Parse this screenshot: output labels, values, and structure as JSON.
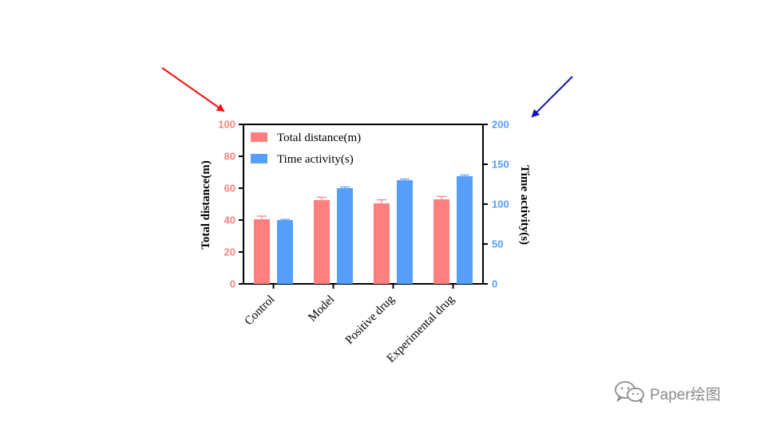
{
  "colors": {
    "distance": "#ff7f7f",
    "activity": "#569ff8",
    "left_axis_text": "#ff7f7f",
    "right_axis_text": "#569ff8",
    "red_arrow": "#ee1111",
    "blue_arrow": "#1111cc",
    "watermark": "#8a8a8a"
  },
  "watermark": {
    "icon": "wechat-icon",
    "text": "Paper绘图"
  },
  "chart_data": {
    "type": "bar",
    "categories": [
      "Control",
      "Model",
      "Positive drug",
      "Experimental drug"
    ],
    "series": [
      {
        "name": "Total distance(m)",
        "axis": "left",
        "values": [
          40.5,
          52.5,
          50.5,
          53
        ],
        "errors": [
          2,
          1.8,
          2.2,
          1.8
        ]
      },
      {
        "name": "Time activity(s)",
        "axis": "right",
        "values": [
          80,
          120,
          130,
          135
        ],
        "errors": [
          1,
          1.5,
          1.5,
          1.5
        ]
      }
    ],
    "left_axis": {
      "label": "Total distance(m)",
      "range": [
        0,
        100
      ],
      "ticks": [
        "0",
        "20",
        "40",
        "60",
        "80",
        "100"
      ]
    },
    "right_axis": {
      "label": "Time activity(s)",
      "range": [
        0,
        200
      ],
      "ticks": [
        "0",
        "50",
        "100",
        "150",
        "200"
      ]
    },
    "legend": {
      "position": "top-left",
      "items": [
        "Total distance(m)",
        "Time activity(s)"
      ]
    },
    "grid": false
  }
}
